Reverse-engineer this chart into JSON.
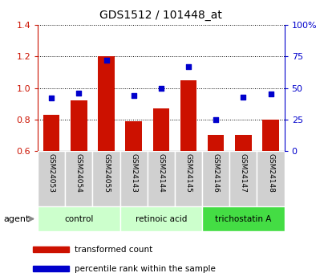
{
  "title": "GDS1512 / 101448_at",
  "samples": [
    "GSM24053",
    "GSM24054",
    "GSM24055",
    "GSM24143",
    "GSM24144",
    "GSM24145",
    "GSM24146",
    "GSM24147",
    "GSM24148"
  ],
  "transformed_count": [
    0.83,
    0.92,
    1.2,
    0.79,
    0.87,
    1.05,
    0.7,
    0.7,
    0.8
  ],
  "percentile_rank": [
    42,
    46,
    72,
    44,
    50,
    67,
    25,
    43,
    45
  ],
  "ylim_left": [
    0.6,
    1.4
  ],
  "ylim_right": [
    0,
    100
  ],
  "yticks_left": [
    0.6,
    0.8,
    1.0,
    1.2,
    1.4
  ],
  "yticks_right": [
    0,
    25,
    50,
    75,
    100
  ],
  "ytick_labels_right": [
    "0",
    "25",
    "50",
    "75",
    "100%"
  ],
  "bar_color": "#cc1100",
  "dot_color": "#0000cc",
  "bar_bottom": 0.6,
  "groups": [
    {
      "label": "control",
      "start": 0,
      "end": 2,
      "color": "#ccffcc"
    },
    {
      "label": "retinoic acid",
      "start": 3,
      "end": 5,
      "color": "#ccffcc"
    },
    {
      "label": "trichostatin A",
      "start": 6,
      "end": 8,
      "color": "#44dd44"
    }
  ],
  "legend_entries": [
    "transformed count",
    "percentile rank within the sample"
  ],
  "agent_label": "agent",
  "grid_linestyle": "dotted",
  "grid_color": "black",
  "sample_box_color": "#d0d0d0",
  "tick_label_color_left": "#cc1100",
  "tick_label_color_right": "#0000cc"
}
